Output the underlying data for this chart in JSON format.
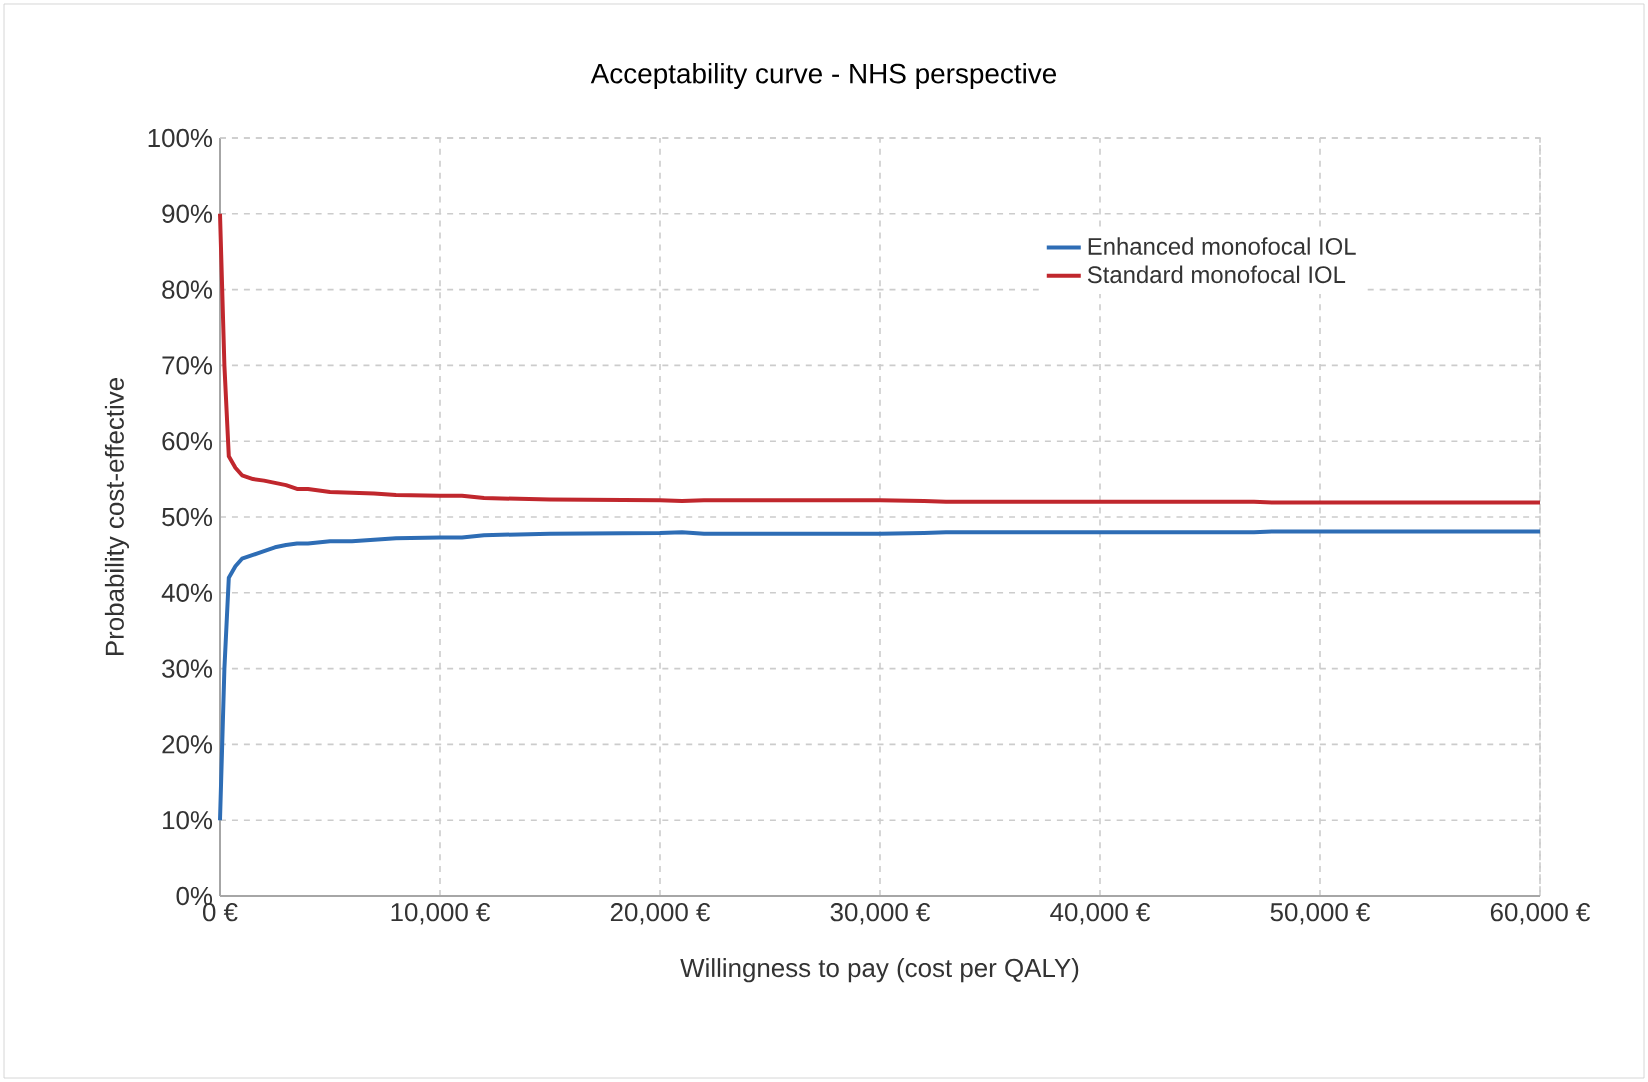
{
  "chart_data": {
    "type": "line",
    "title": "Acceptability curve - NHS perspective",
    "xlabel": "Willingness to pay (cost per QALY)",
    "ylabel": "Probability cost-effective",
    "x": [
      0,
      200,
      400,
      700,
      1000,
      1500,
      2000,
      2500,
      3000,
      3500,
      4000,
      5000,
      6000,
      7000,
      8000,
      10000,
      11000,
      12000,
      15000,
      20000,
      21000,
      22000,
      30000,
      32000,
      33000,
      35000,
      40000,
      47000,
      48000,
      50000,
      60000
    ],
    "series": [
      {
        "name": "Enhanced monofocal IOL",
        "color": "#2e6db5",
        "values": [
          10,
          30,
          42,
          43.5,
          44.5,
          45,
          45.5,
          46,
          46.3,
          46.5,
          46.5,
          46.8,
          46.8,
          47,
          47.2,
          47.3,
          47.3,
          47.6,
          47.8,
          47.9,
          48,
          47.8,
          47.8,
          47.9,
          48,
          48,
          48,
          48,
          48.1,
          48.1,
          48.1
        ]
      },
      {
        "name": "Standard monofocal IOL",
        "color": "#c0272d",
        "values": [
          90,
          70,
          58,
          56.5,
          55.5,
          55,
          54.8,
          54.5,
          54.2,
          53.7,
          53.7,
          53.3,
          53.2,
          53.1,
          52.9,
          52.8,
          52.8,
          52.5,
          52.3,
          52.2,
          52.1,
          52.2,
          52.2,
          52.1,
          52,
          52,
          52,
          52,
          51.9,
          51.9,
          51.9
        ]
      }
    ],
    "xlim": [
      0,
      60000
    ],
    "ylim": [
      0,
      100
    ],
    "xticks": [
      {
        "value": 0,
        "label": "0 €"
      },
      {
        "value": 10000,
        "label": "10,000 €"
      },
      {
        "value": 20000,
        "label": "20,000 €"
      },
      {
        "value": 30000,
        "label": "30,000 €"
      },
      {
        "value": 40000,
        "label": "40,000 €"
      },
      {
        "value": 50000,
        "label": "50,000 €"
      },
      {
        "value": 60000,
        "label": "60,000 €"
      }
    ],
    "yticks": [
      {
        "value": 0,
        "label": "0%"
      },
      {
        "value": 10,
        "label": "10%"
      },
      {
        "value": 20,
        "label": "20%"
      },
      {
        "value": 30,
        "label": "30%"
      },
      {
        "value": 40,
        "label": "40%"
      },
      {
        "value": 50,
        "label": "50%"
      },
      {
        "value": 60,
        "label": "60%"
      },
      {
        "value": 70,
        "label": "70%"
      },
      {
        "value": 80,
        "label": "80%"
      },
      {
        "value": 90,
        "label": "90%"
      },
      {
        "value": 100,
        "label": "100%"
      }
    ],
    "grid": true,
    "legend": "top right",
    "marker": "none",
    "line_style": "solid"
  }
}
